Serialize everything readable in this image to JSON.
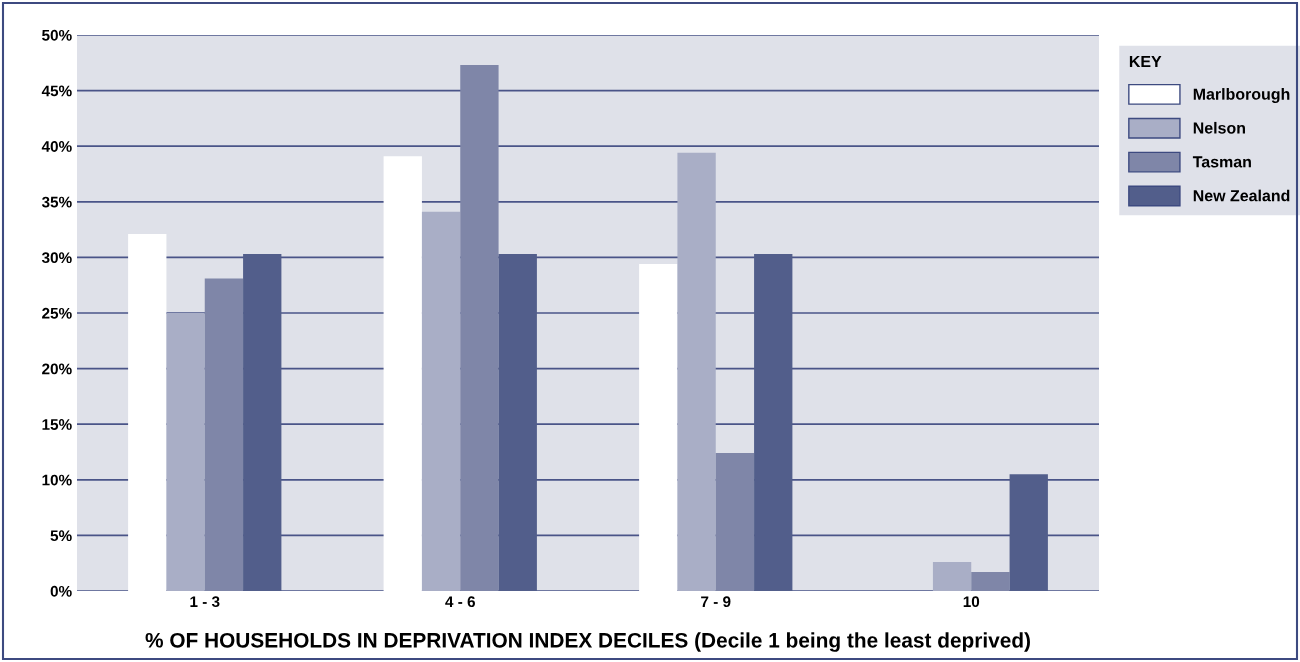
{
  "chart_data": {
    "type": "bar",
    "xlabel": "% OF HOUSEHOLDS IN DEPRIVATION INDEX DECILES (Decile 1 being the least deprived)",
    "legend_title": "KEY",
    "categories": [
      "1 - 3",
      "4 - 6",
      "7 - 9",
      "10"
    ],
    "series": [
      {
        "name": "Marlborough",
        "color": "#ffffff",
        "values": [
          32.1,
          39.1,
          29.4,
          0
        ]
      },
      {
        "name": "Nelson",
        "color": "#a9aec6",
        "values": [
          25.0,
          34.1,
          39.4,
          2.6
        ]
      },
      {
        "name": "Tasman",
        "color": "#7f86a8",
        "values": [
          28.1,
          47.3,
          12.4,
          1.7
        ]
      },
      {
        "name": "New Zealand",
        "color": "#525e8b",
        "values": [
          30.3,
          30.3,
          30.3,
          10.5
        ]
      }
    ],
    "ylim": [
      0,
      50
    ],
    "yticks": [
      {
        "value": 0,
        "label": "0%"
      },
      {
        "value": 5,
        "label": "5%"
      },
      {
        "value": 10,
        "label": "10%"
      },
      {
        "value": 15,
        "label": "15%"
      },
      {
        "value": 20,
        "label": "20%"
      },
      {
        "value": 25,
        "label": "25%"
      },
      {
        "value": 30,
        "label": "30%"
      },
      {
        "value": 35,
        "label": "35%"
      },
      {
        "value": 40,
        "label": "40%"
      },
      {
        "value": 45,
        "label": "45%"
      },
      {
        "value": 50,
        "label": "50%"
      }
    ],
    "grid": "y",
    "legend": "top right"
  }
}
